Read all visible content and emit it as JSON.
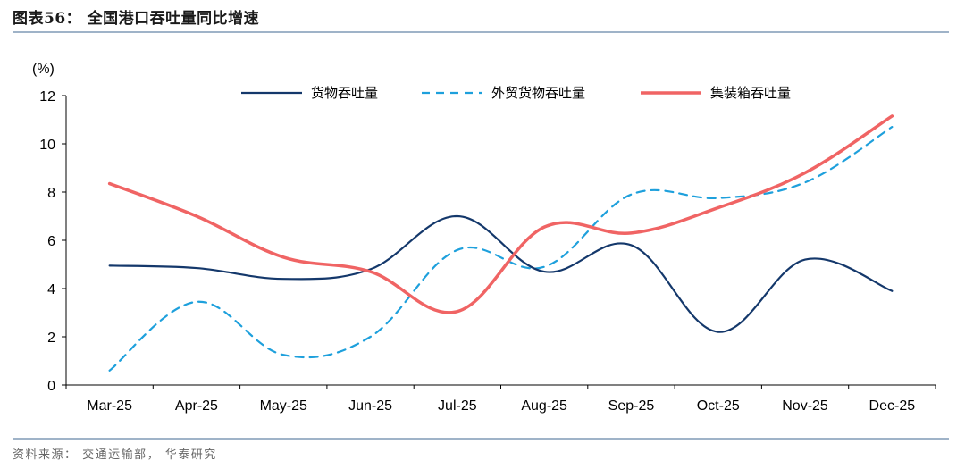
{
  "header": {
    "title": "图表56： 全国港口吞吐量同比增速"
  },
  "footer": {
    "source": "资料来源： 交通运输部， 华泰研究"
  },
  "chart_data": {
    "type": "line",
    "title": "图表56： 全国港口吞吐量同比增速",
    "ylabel": "(%)",
    "xlabel": "",
    "ylim": [
      0,
      12
    ],
    "yticks": [
      0,
      2,
      4,
      6,
      8,
      10,
      12
    ],
    "grid": false,
    "legend_position": "top",
    "categories": [
      "Mar-25",
      "Apr-25",
      "May-25",
      "Jun-25",
      "Jul-25",
      "Aug-25",
      "Sep-25",
      "Oct-25",
      "Nov-25",
      "Dec-25"
    ],
    "series": [
      {
        "name": "货物吞吐量",
        "color": "#14386b",
        "dash": "solid",
        "values": [
          4.95,
          4.85,
          4.4,
          4.8,
          7.0,
          4.7,
          5.8,
          2.2,
          5.2,
          3.9
        ]
      },
      {
        "name": "外贸货物吞吐量",
        "color": "#1ea0dc",
        "dash": "dashed",
        "values": [
          0.6,
          3.45,
          1.25,
          2.0,
          5.6,
          4.9,
          7.9,
          7.75,
          8.4,
          10.7
        ]
      },
      {
        "name": "集装箱吞吐量",
        "color": "#f06464",
        "dash": "solid",
        "values": [
          8.35,
          7.0,
          5.3,
          4.7,
          3.05,
          6.55,
          6.3,
          7.35,
          8.8,
          11.15
        ]
      }
    ]
  }
}
